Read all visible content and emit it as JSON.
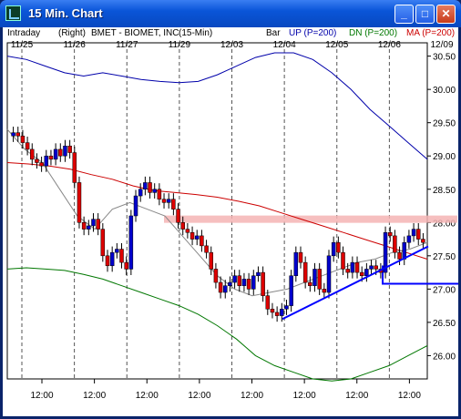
{
  "window": {
    "title": "15 Min. Chart"
  },
  "header": {
    "mode": "Intraday",
    "scale_side": "(Right)",
    "symbol_desc": "BMET - BIOMET, INC",
    "interval": "(15-Min)",
    "chart_style": "Bar",
    "up_label": "UP (P=200)",
    "dn_label": "DN (P=200)",
    "ma_label": "MA (P=200)",
    "colors": {
      "up": "#0000aa",
      "dn": "#007700",
      "ma": "#cc0000"
    }
  },
  "chart_data": {
    "type": "line",
    "style": "candlestick-bar",
    "x_date_labels": [
      "11/25",
      "11/26",
      "11/27",
      "11/29",
      "12/03",
      "12/04",
      "12/05",
      "12/06",
      "12/09"
    ],
    "x_time_labels": [
      "12:00",
      "12:00",
      "12:00",
      "12:00",
      "12:00",
      "12:00",
      "12:00",
      "12:00"
    ],
    "y_ticks": [
      26.0,
      26.5,
      27.0,
      27.5,
      28.0,
      28.5,
      29.0,
      29.5,
      30.0,
      30.5
    ],
    "ylim": [
      25.65,
      30.7
    ],
    "grid": false,
    "day_separators": true,
    "series": [
      {
        "name": "UP (P=200)",
        "color": "#0000aa",
        "values": [
          30.5,
          30.45,
          30.35,
          30.25,
          30.2,
          30.25,
          30.2,
          30.15,
          30.12,
          30.1,
          30.12,
          30.22,
          30.35,
          30.48,
          30.55,
          30.55,
          30.45,
          30.25,
          30.0,
          29.7,
          29.45,
          29.2,
          28.95
        ]
      },
      {
        "name": "DN (P=200)",
        "color": "#007700",
        "values": [
          27.3,
          27.32,
          27.3,
          27.28,
          27.22,
          27.15,
          27.05,
          26.95,
          26.85,
          26.75,
          26.62,
          26.45,
          26.25,
          26.0,
          25.85,
          25.75,
          25.65,
          25.62,
          25.65,
          25.75,
          25.85,
          26.0,
          26.15
        ]
      },
      {
        "name": "MA (P=200)",
        "color": "#cc0000",
        "values": [
          28.9,
          28.88,
          28.85,
          28.8,
          28.72,
          28.65,
          28.55,
          28.48,
          28.45,
          28.42,
          28.38,
          28.32,
          28.25,
          28.15,
          28.05,
          27.95,
          27.85,
          27.75,
          27.65,
          27.55,
          27.45
        ]
      },
      {
        "name": "",
        "color": "#888888",
        "values": [
          29.4,
          29.1,
          28.9,
          28.5,
          28.1,
          27.9,
          28.2,
          28.3,
          28.2,
          28.1,
          27.8,
          27.5,
          27.2,
          27.0,
          26.9,
          26.95,
          27.0,
          27.1,
          27.2,
          27.3,
          27.4,
          27.45,
          27.55,
          27.6,
          27.7
        ]
      }
    ],
    "price_closes": [
      29.35,
      29.3,
      29.2,
      29.1,
      28.95,
      28.9,
      28.85,
      29.0,
      28.95,
      29.1,
      29.0,
      29.15,
      29.05,
      28.6,
      28.0,
      27.9,
      27.95,
      28.05,
      27.9,
      27.5,
      27.35,
      27.55,
      27.6,
      27.4,
      27.3,
      28.1,
      28.4,
      28.5,
      28.6,
      28.45,
      28.5,
      28.35,
      28.3,
      28.35,
      28.2,
      28.0,
      27.9,
      27.85,
      27.75,
      27.8,
      27.65,
      27.55,
      27.3,
      27.1,
      26.95,
      27.05,
      27.1,
      27.2,
      27.05,
      27.15,
      27.0,
      27.2,
      27.25,
      26.9,
      26.7,
      26.65,
      26.6,
      26.7,
      26.75,
      27.2,
      27.55,
      27.4,
      27.1,
      27.05,
      27.3,
      27.0,
      26.95,
      27.5,
      27.7,
      27.55,
      27.3,
      27.25,
      27.4,
      27.25,
      27.2,
      27.3,
      27.35,
      27.3,
      27.25,
      27.85,
      27.8,
      27.55,
      27.45,
      27.7,
      27.8,
      27.9,
      27.75,
      27.7
    ]
  },
  "annotations": {
    "resistance_level": 28.05,
    "support_level": 27.08,
    "trendline": {
      "from": [
        12.5,
        26.55
      ],
      "to": [
        19.6,
        27.6
      ]
    }
  }
}
